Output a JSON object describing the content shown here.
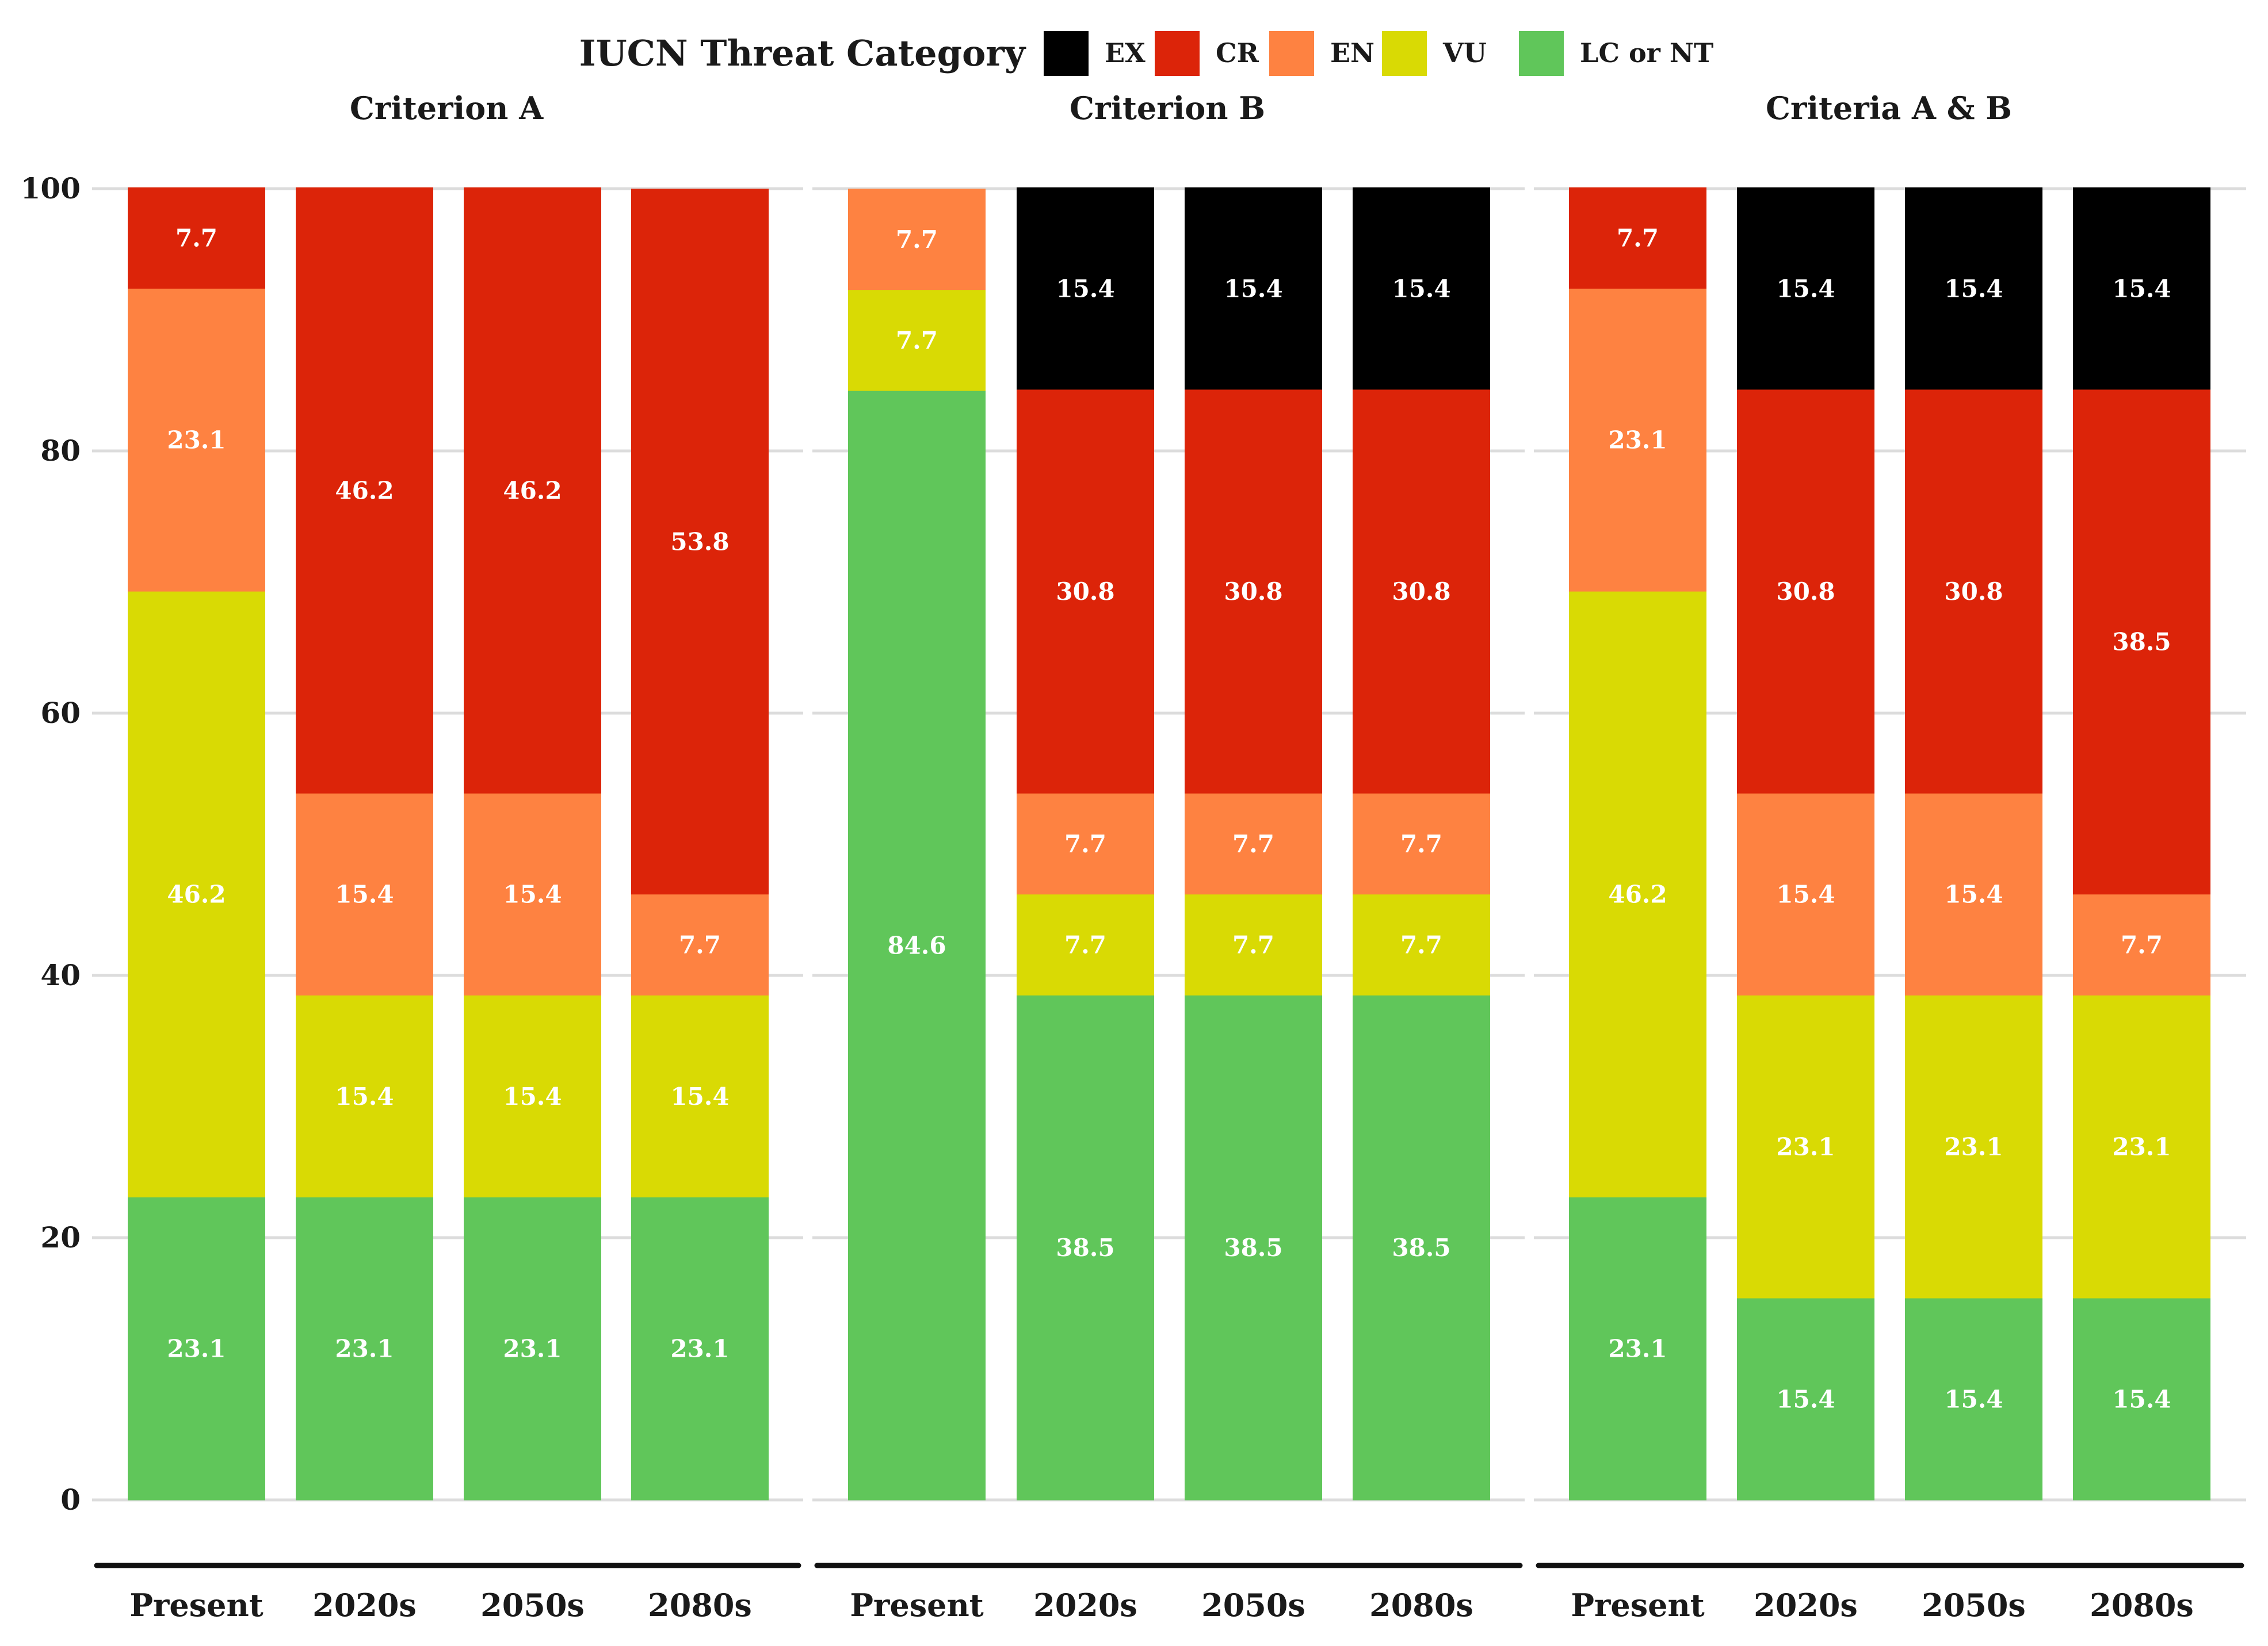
{
  "chart_data": {
    "type": "bar",
    "stacked": true,
    "legend": {
      "title": "IUCN Threat Category",
      "placement": "top",
      "entries": [
        {
          "key": "EX",
          "label": "EX",
          "color": "#000000"
        },
        {
          "key": "CR",
          "label": "CR",
          "color": "#DC2409"
        },
        {
          "key": "EN",
          "label": "EN",
          "color": "#FE8241"
        },
        {
          "key": "VU",
          "label": "VU",
          "color": "#D9DA04"
        },
        {
          "key": "LC",
          "label": "LC or NT",
          "color": "#60C65A"
        }
      ]
    },
    "y_axis": {
      "ylim": [
        0,
        100
      ],
      "ticks": [
        "0",
        "20",
        "40",
        "60",
        "80",
        "100"
      ],
      "grid": true
    },
    "categories": [
      "Present",
      "2020s",
      "2050s",
      "2080s"
    ],
    "stack_order_bottom_to_top": [
      "LC",
      "VU",
      "EN",
      "CR",
      "EX"
    ],
    "panels": [
      {
        "title": "Criterion A",
        "bars": [
          {
            "category": "Present",
            "segments": [
              {
                "cat": "LC",
                "value": 23.1,
                "label": "23.1"
              },
              {
                "cat": "VU",
                "value": 46.2,
                "label": "46.2"
              },
              {
                "cat": "EN",
                "value": 23.1,
                "label": "23.1"
              },
              {
                "cat": "CR",
                "value": 7.7,
                "label": "7.7"
              }
            ]
          },
          {
            "category": "2020s",
            "segments": [
              {
                "cat": "LC",
                "value": 23.1,
                "label": "23.1"
              },
              {
                "cat": "VU",
                "value": 15.4,
                "label": "15.4"
              },
              {
                "cat": "EN",
                "value": 15.4,
                "label": "15.4"
              },
              {
                "cat": "CR",
                "value": 46.2,
                "label": "46.2"
              }
            ]
          },
          {
            "category": "2050s",
            "segments": [
              {
                "cat": "LC",
                "value": 23.1,
                "label": "23.1"
              },
              {
                "cat": "VU",
                "value": 15.4,
                "label": "15.4"
              },
              {
                "cat": "EN",
                "value": 15.4,
                "label": "15.4"
              },
              {
                "cat": "CR",
                "value": 46.2,
                "label": "46.2"
              }
            ]
          },
          {
            "category": "2080s",
            "segments": [
              {
                "cat": "LC",
                "value": 23.1,
                "label": "23.1"
              },
              {
                "cat": "VU",
                "value": 15.4,
                "label": "15.4"
              },
              {
                "cat": "EN",
                "value": 7.7,
                "label": "7.7"
              },
              {
                "cat": "CR",
                "value": 53.8,
                "label": "53.8"
              }
            ]
          }
        ]
      },
      {
        "title": "Criterion B",
        "bars": [
          {
            "category": "Present",
            "segments": [
              {
                "cat": "LC",
                "value": 84.6,
                "label": "84.6"
              },
              {
                "cat": "VU",
                "value": 7.7,
                "label": "7.7"
              },
              {
                "cat": "EN",
                "value": 7.7,
                "label": "7.7"
              }
            ]
          },
          {
            "category": "2020s",
            "segments": [
              {
                "cat": "LC",
                "value": 38.5,
                "label": "38.5"
              },
              {
                "cat": "VU",
                "value": 7.7,
                "label": "7.7"
              },
              {
                "cat": "EN",
                "value": 7.7,
                "label": "7.7"
              },
              {
                "cat": "CR",
                "value": 30.8,
                "label": "30.8"
              },
              {
                "cat": "EX",
                "value": 15.4,
                "label": "15.4"
              }
            ]
          },
          {
            "category": "2050s",
            "segments": [
              {
                "cat": "LC",
                "value": 38.5,
                "label": "38.5"
              },
              {
                "cat": "VU",
                "value": 7.7,
                "label": "7.7"
              },
              {
                "cat": "EN",
                "value": 7.7,
                "label": "7.7"
              },
              {
                "cat": "CR",
                "value": 30.8,
                "label": "30.8"
              },
              {
                "cat": "EX",
                "value": 15.4,
                "label": "15.4"
              }
            ]
          },
          {
            "category": "2080s",
            "segments": [
              {
                "cat": "LC",
                "value": 38.5,
                "label": "38.5"
              },
              {
                "cat": "VU",
                "value": 7.7,
                "label": "7.7"
              },
              {
                "cat": "EN",
                "value": 7.7,
                "label": "7.7"
              },
              {
                "cat": "CR",
                "value": 30.8,
                "label": "30.8"
              },
              {
                "cat": "EX",
                "value": 15.4,
                "label": "15.4"
              }
            ]
          }
        ]
      },
      {
        "title": "Criteria A & B",
        "bars": [
          {
            "category": "Present",
            "segments": [
              {
                "cat": "LC",
                "value": 23.1,
                "label": "23.1"
              },
              {
                "cat": "VU",
                "value": 46.2,
                "label": "46.2"
              },
              {
                "cat": "EN",
                "value": 23.1,
                "label": "23.1"
              },
              {
                "cat": "CR",
                "value": 7.7,
                "label": "7.7"
              }
            ]
          },
          {
            "category": "2020s",
            "segments": [
              {
                "cat": "LC",
                "value": 15.4,
                "label": "15.4"
              },
              {
                "cat": "VU",
                "value": 23.1,
                "label": "23.1"
              },
              {
                "cat": "EN",
                "value": 15.4,
                "label": "15.4"
              },
              {
                "cat": "CR",
                "value": 30.8,
                "label": "30.8"
              },
              {
                "cat": "EX",
                "value": 15.4,
                "label": "15.4"
              }
            ]
          },
          {
            "category": "2050s",
            "segments": [
              {
                "cat": "LC",
                "value": 15.4,
                "label": "15.4"
              },
              {
                "cat": "VU",
                "value": 23.1,
                "label": "23.1"
              },
              {
                "cat": "EN",
                "value": 15.4,
                "label": "15.4"
              },
              {
                "cat": "CR",
                "value": 30.8,
                "label": "30.8"
              },
              {
                "cat": "EX",
                "value": 15.4,
                "label": "15.4"
              }
            ]
          },
          {
            "category": "2080s",
            "segments": [
              {
                "cat": "LC",
                "value": 15.4,
                "label": "15.4"
              },
              {
                "cat": "VU",
                "value": 23.1,
                "label": "23.1"
              },
              {
                "cat": "EN",
                "value": 7.7,
                "label": "7.7"
              },
              {
                "cat": "CR",
                "value": 38.5,
                "label": "38.5"
              },
              {
                "cat": "EX",
                "value": 15.4,
                "label": "15.4"
              }
            ]
          }
        ]
      }
    ]
  }
}
